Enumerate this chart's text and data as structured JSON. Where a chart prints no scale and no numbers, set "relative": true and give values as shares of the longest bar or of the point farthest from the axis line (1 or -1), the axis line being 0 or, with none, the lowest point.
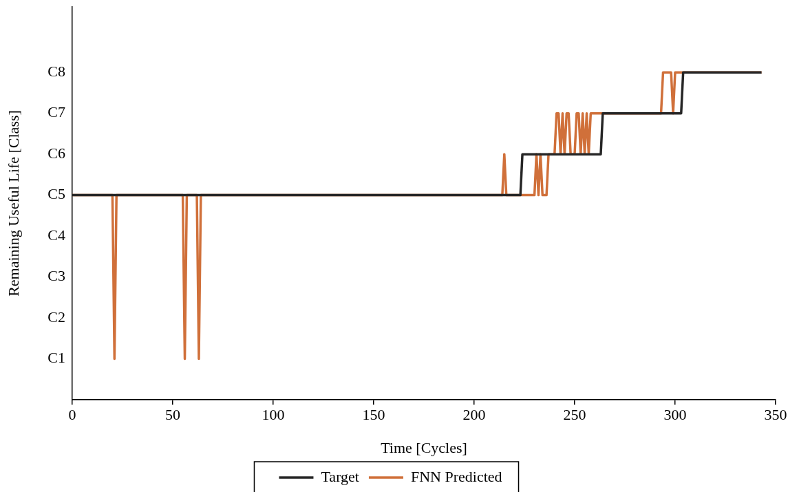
{
  "chart_data": {
    "type": "line",
    "xlabel": "Time [Cycles]",
    "ylabel": "Remaining Useful Life [Class]",
    "xlim": [
      0,
      350
    ],
    "xticks": [
      0,
      50,
      100,
      150,
      200,
      250,
      300,
      350
    ],
    "relative": true,
    "annotations": [
      "C1",
      "C2",
      "C3",
      "C4",
      "C5",
      "C6",
      "C7",
      "C8"
    ],
    "legend": "bottom",
    "series": [
      {
        "name": "Target",
        "color": "#262626",
        "x": [
          0,
          223,
          224,
          263,
          264,
          303,
          304,
          343
        ],
        "values": [
          0.625,
          0.625,
          0.75,
          0.75,
          0.875,
          0.875,
          1,
          1
        ]
      },
      {
        "name": "FNN Predicted",
        "color": "#d0703a",
        "x": [
          0,
          20,
          21,
          22,
          55,
          56,
          57,
          62,
          63,
          64,
          214,
          215,
          216,
          230,
          231,
          232,
          233,
          234,
          236,
          237,
          238,
          239,
          240,
          241,
          242,
          243,
          244,
          245,
          246,
          247,
          248,
          250,
          251,
          252,
          253,
          254,
          255,
          256,
          257,
          258,
          293,
          294,
          298,
          299,
          300,
          343
        ],
        "values": [
          0.625,
          0.625,
          0.125,
          0.625,
          0.625,
          0.125,
          0.625,
          0.625,
          0.125,
          0.625,
          0.625,
          0.75,
          0.625,
          0.625,
          0.75,
          0.625,
          0.75,
          0.625,
          0.625,
          0.75,
          0.75,
          0.75,
          0.75,
          0.875,
          0.875,
          0.75,
          0.875,
          0.75,
          0.875,
          0.875,
          0.75,
          0.75,
          0.875,
          0.875,
          0.75,
          0.875,
          0.75,
          0.875,
          0.75,
          0.875,
          0.875,
          1,
          1,
          0.875,
          1,
          1
        ]
      }
    ]
  }
}
